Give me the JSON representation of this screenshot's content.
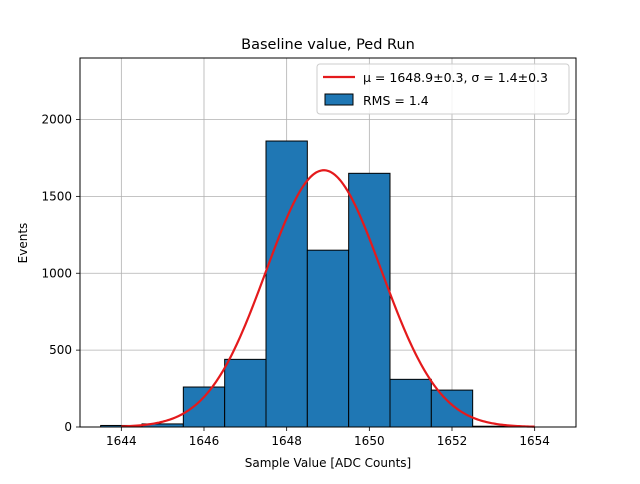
{
  "chart_data": {
    "type": "bar",
    "title": "Baseline value, Ped Run",
    "xlabel": "Sample Value [ADC Counts]",
    "ylabel": "Events",
    "xlim": [
      1643.0,
      1655.0
    ],
    "ylim": [
      0,
      2400
    ],
    "xticks": [
      1644,
      1646,
      1648,
      1650,
      1652,
      1654
    ],
    "yticks": [
      0,
      500,
      1000,
      1500,
      2000
    ],
    "grid": true,
    "legend_position": "top-right",
    "bins": [
      {
        "x0": 1643.5,
        "x1": 1644.5,
        "value": 10
      },
      {
        "x0": 1644.5,
        "x1": 1645.5,
        "value": 20
      },
      {
        "x0": 1645.5,
        "x1": 1646.5,
        "value": 260
      },
      {
        "x0": 1646.5,
        "x1": 1647.5,
        "value": 440
      },
      {
        "x0": 1647.5,
        "x1": 1648.5,
        "value": 1860
      },
      {
        "x0": 1648.5,
        "x1": 1649.5,
        "value": 1150
      },
      {
        "x0": 1649.5,
        "x1": 1650.5,
        "value": 1650
      },
      {
        "x0": 1650.5,
        "x1": 1651.5,
        "value": 310
      },
      {
        "x0": 1651.5,
        "x1": 1652.5,
        "value": 240
      },
      {
        "x0": 1652.5,
        "x1": 1653.5,
        "value": 5
      }
    ],
    "fit": {
      "mu": 1648.9,
      "sigma": 1.4,
      "amplitude": 1670,
      "x_range": [
        1644,
        1654
      ]
    },
    "series": [
      {
        "name": "RMS = 1.4",
        "type": "histogram",
        "color": "#1f77b4",
        "edgecolor": "#000000"
      },
      {
        "name": "μ = 1648.9±0.3, σ = 1.4±0.3",
        "type": "line",
        "color": "#e41a1c"
      }
    ],
    "legend": {
      "fit_label": "μ = 1648.9±0.3, σ = 1.4±0.3",
      "hist_label": "RMS = 1.4"
    }
  }
}
